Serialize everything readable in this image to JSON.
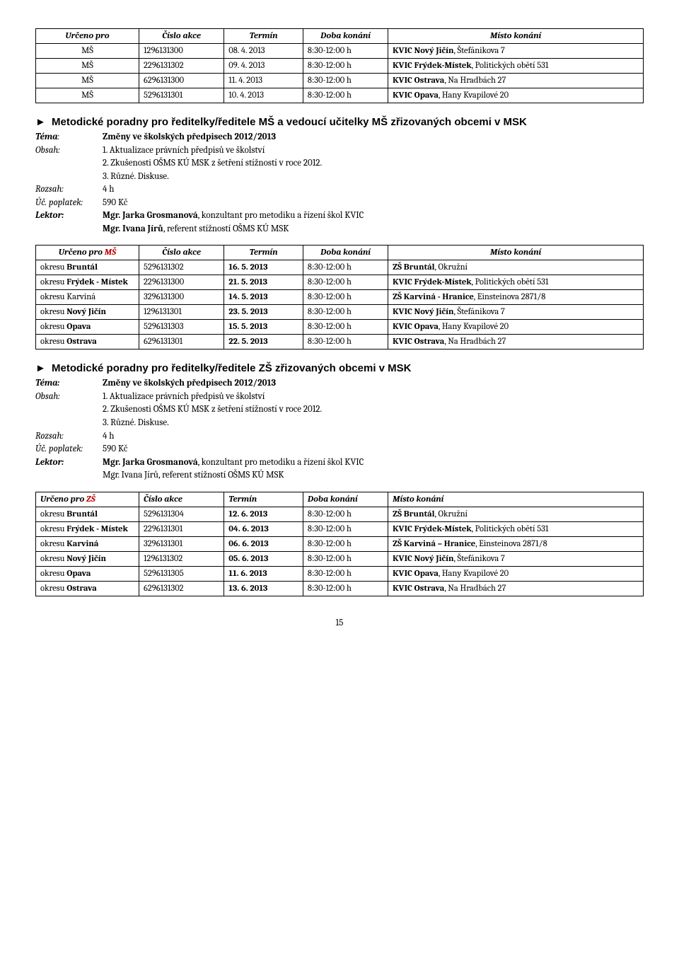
{
  "table1": {
    "headers": [
      "Určeno pro",
      "Číslo akce",
      "Termín",
      "Doba konání",
      "Místo konání"
    ],
    "rows": [
      {
        "urceno": "MŠ",
        "cislo": "1296131300",
        "termin": "08. 4. 2013",
        "doba": "8:30-12:00 h",
        "misto_b": "KVIC Nový Jičín",
        "misto_r": ", Štefánikova 7"
      },
      {
        "urceno": "MŠ",
        "cislo": "2296131302",
        "termin": "09. 4. 2013",
        "doba": "8:30-12:00 h",
        "misto_b": "KVIC Frýdek-Místek",
        "misto_r": ", Politických obětí 531"
      },
      {
        "urceno": "MŠ",
        "cislo": "6296131300",
        "termin": "11. 4. 2013",
        "doba": "8:30-12:00 h",
        "misto_b": "KVIC Ostrava",
        "misto_r": ", Na Hradbách 27"
      },
      {
        "urceno": "MŠ",
        "cislo": "5296131301",
        "termin": "10. 4. 2013",
        "doba": "8:30-12:00 h",
        "misto_b": "KVIC Opava",
        "misto_r": ", Hany Kvapilové 20"
      }
    ]
  },
  "section1": {
    "heading": "Metodické poradny pro ředitelky/ředitele MŠ a vedoucí učitelky MŠ zřizovaných obcemi v MSK",
    "tema_label": "Téma",
    "tema": "Změny ve školských předpisech 2012/2013",
    "obsah_label": "Obsah:",
    "obsah1": "1. Aktualizace právních předpisů ve školství",
    "obsah2": "2. Zkušenosti OŠMS KÚ MSK z šetření stížností v roce 2012.",
    "obsah3": "3. Různé. Diskuse.",
    "rozsah_label": "Rozsah",
    "rozsah": "4 h",
    "poplatek_label": "Úč. poplatek:",
    "poplatek": "590 Kč",
    "lektor_label": "Lektor",
    "lektor1_b": "Mgr. Jarka Grosmanová",
    "lektor1_r": ", konzultant pro metodiku a řízení škol KVIC",
    "lektor2_b": "Mgr. Ivana Jírů",
    "lektor2_r": ", referent stížností OŠMS KÚ MSK"
  },
  "table2": {
    "header_urceno_p": "Určeno pro ",
    "header_urceno_s": "MŠ",
    "headers": [
      "Číslo akce",
      "Termín",
      "Doba konání",
      "Místo konání"
    ],
    "rows": [
      {
        "u_p": "okresu ",
        "u_b": "Bruntál",
        "u_s": "",
        "cislo": "5296131302",
        "termin": "16. 5. 2013",
        "doba": "8:30-12:00 h",
        "m_b": "ZŠ Bruntál",
        "m_r": ", Okružní"
      },
      {
        "u_p": "okresu ",
        "u_b": "Frýdek - Místek",
        "u_s": "",
        "cislo": "2296131300",
        "termin": "21. 5. 2013",
        "doba": "8:30-12:00 h",
        "m_b": "KVIC Frýdek-Místek",
        "m_r": ", Politických obětí 531"
      },
      {
        "u_p": "okresu Karviná",
        "u_b": "",
        "u_s": "",
        "cislo": "3296131300",
        "termin": "14. 5. 2013",
        "doba": "8:30-12:00 h",
        "m_b": "ZŠ Karviná - Hranice",
        "m_r": ", Einsteinova 2871/8"
      },
      {
        "u_p": "okresu ",
        "u_b": "Nový Jičín",
        "u_s": "",
        "cislo": "1296131301",
        "termin": "23. 5. 2013",
        "doba": "8:30-12:00 h",
        "m_b": "KVIC Nový Jičín",
        "m_r": ", Štefánikova 7"
      },
      {
        "u_p": "okresu ",
        "u_b": "Opava",
        "u_s": "",
        "cislo": "5296131303",
        "termin": "15. 5. 2013",
        "doba": "8:30-12:00 h",
        "m_b": "KVIC Opava",
        "m_r": ", Hany Kvapilové 20"
      },
      {
        "u_p": "okresu ",
        "u_b": "Ostrava",
        "u_s": "",
        "cislo": "6296131301",
        "termin": "22. 5. 2013",
        "doba": "8:30-12:00 h",
        "m_b": "KVIC Ostrava",
        "m_r": ", Na Hradbách 27"
      }
    ]
  },
  "section2": {
    "heading": "Metodické poradny pro ředitelky/ředitele ZŠ zřizovaných obcemi v MSK",
    "tema_label": "Téma:",
    "tema": "Změny ve školských předpisech 2012/2013",
    "obsah_label": "Obsah:",
    "obsah1": "1. Aktualizace právních předpisů ve školství",
    "obsah2": "2. Zkušenosti OŠMS KÚ MSK z šetření stížností v roce 2012.",
    "obsah3": "3. Různé. Diskuse.",
    "rozsah_label": "Rozsah",
    "rozsah": "4 h",
    "poplatek_label": "Úč. poplatek:",
    "poplatek": "590 Kč",
    "lektor_label": "Lektor:",
    "lektor1_b": "Mgr. Jarka Grosmanová",
    "lektor1_r": ", konzultant pro metodiku a řízení škol KVIC",
    "lektor2": "Mgr. Ivana Jírů, referent stížností OŠMS KÚ MSK"
  },
  "table3": {
    "header_urceno_p": "Určeno pro ",
    "header_urceno_s": "ZŠ",
    "headers": [
      "Číslo akce",
      "Termín",
      "Doba konání",
      "Místo konání"
    ],
    "rows": [
      {
        "u_p": "okresu ",
        "u_b": "Bruntál",
        "cislo": "5296131304",
        "termin": "12. 6. 2013",
        "doba": "8:30-12:00 h",
        "m_b": "ZŠ Bruntál",
        "m_r": ", Okružní"
      },
      {
        "u_p": "okresu ",
        "u_b": "Frýdek - Místek",
        "cislo": "2296131301",
        "termin": "04. 6. 2013",
        "doba": "8:30-12:00 h",
        "m_b": "KVIC Frýdek-Místek",
        "m_r": ", Politických obětí 531"
      },
      {
        "u_p": "okresu ",
        "u_b": "Karviná",
        "cislo": "3296131301",
        "termin": "06. 6. 2013",
        "doba": "8:30-12:00 h",
        "m_b": "ZŠ Karviná – Hranice",
        "m_r": ", Einsteinova 2871/8"
      },
      {
        "u_p": "okresu ",
        "u_b": "Nový Jičín",
        "cislo": "1296131302",
        "termin": "05. 6. 2013",
        "doba": "8:30-12:00 h",
        "m_b": "KVIC Nový Jičín",
        "m_r": ", Štefánikova 7"
      },
      {
        "u_p": "okresu ",
        "u_b": "Opava",
        "cislo": "5296131305",
        "termin": "11. 6. 2013",
        "doba": "8:30-12:00 h",
        "m_b": "KVIC Opava",
        "m_r": ", Hany Kvapilové 20"
      },
      {
        "u_p": "okresu ",
        "u_b": "Ostrava",
        "cislo": "6296131302",
        "termin": "13. 6. 2013",
        "doba": "8:30-12:00 h",
        "m_b": "KVIC Ostrava",
        "m_r": ", Na Hradbách 27"
      }
    ]
  },
  "page_number": "15",
  "arrow": "►",
  "colon": ":",
  "accent_color": "#c00000"
}
